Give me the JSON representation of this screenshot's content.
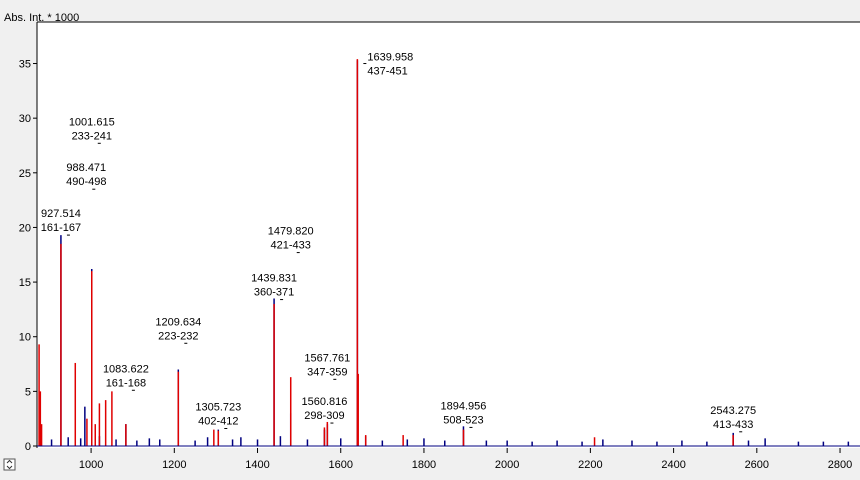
{
  "chart_data": {
    "type": "stem",
    "y_label": "Abs. Int. * 1000",
    "xlim": [
      870,
      2848
    ],
    "ylim": [
      0,
      38.8
    ],
    "xticks": [
      1000,
      1200,
      1400,
      1600,
      1800,
      2000,
      2200,
      2400,
      2600,
      2800
    ],
    "yticks": [
      0,
      5,
      10,
      15,
      20,
      25,
      30,
      35
    ],
    "series": [
      {
        "color": "#000080",
        "x": [
          880,
          905,
          927.5,
          945,
          975,
          985,
          1001.6,
          1020,
          1060,
          1083.6,
          1110,
          1140,
          1165,
          1209.6,
          1250,
          1280,
          1305.7,
          1340,
          1360,
          1400,
          1439.8,
          1455,
          1479.8,
          1520,
          1560.8,
          1567.8,
          1600,
          1639.96,
          1660,
          1700,
          1760,
          1800,
          1850,
          1894.96,
          1950,
          2000,
          2060,
          2120,
          2180,
          2230,
          2300,
          2360,
          2420,
          2480,
          2543.3,
          2580,
          2620,
          2700,
          2760,
          2820
        ],
        "values": [
          1.0,
          0.6,
          19.3,
          0.8,
          0.7,
          3.6,
          16.2,
          0.9,
          0.6,
          2.0,
          0.5,
          0.7,
          0.6,
          7.0,
          0.5,
          0.8,
          1.5,
          0.6,
          0.8,
          0.6,
          13.5,
          0.9,
          3.0,
          0.6,
          1.5,
          2.0,
          0.7,
          35.3,
          0.9,
          0.5,
          0.6,
          0.7,
          0.5,
          1.8,
          0.5,
          0.5,
          0.4,
          0.5,
          0.4,
          0.6,
          0.5,
          0.4,
          0.5,
          0.4,
          1.2,
          0.5,
          0.7,
          0.4,
          0.4,
          0.4
        ]
      },
      {
        "color": "#e00000",
        "x": [
          875,
          878,
          881,
          927.5,
          962,
          990,
          1001.6,
          1010,
          1020,
          1035,
          1050,
          1083.6,
          1209.6,
          1295,
          1305.7,
          1439.8,
          1479.8,
          1560.8,
          1567.8,
          1639.96,
          1642,
          1660,
          1750,
          1895,
          2210,
          2543
        ],
        "values": [
          9.3,
          5.0,
          2.0,
          18.5,
          7.6,
          2.5,
          16.0,
          2.0,
          3.9,
          4.2,
          5.0,
          2.0,
          6.8,
          1.5,
          1.4,
          13.0,
          6.3,
          1.7,
          2.2,
          35.4,
          6.6,
          1.0,
          1.0,
          1.5,
          0.8,
          1.0
        ]
      }
    ],
    "annotations": [
      {
        "text": "927.514",
        "range": "161-167",
        "x": 927.514,
        "y": 19.3
      },
      {
        "text": "988.471",
        "range": "490-498",
        "x": 988.471,
        "y": 23.5
      },
      {
        "text": "1001.615",
        "range": "233-241",
        "x": 1001.615,
        "y": 27.7
      },
      {
        "text": "1083.622",
        "range": "161-168",
        "x": 1083.622,
        "y": 5.1
      },
      {
        "text": "1209.634",
        "range": "223-232",
        "x": 1209.634,
        "y": 9.4
      },
      {
        "text": "1305.723",
        "range": "402-412",
        "x": 1305.723,
        "y": 1.6
      },
      {
        "text": "1439.831",
        "range": "360-371",
        "x": 1439.831,
        "y": 13.4
      },
      {
        "text": "1479.820",
        "range": "421-433",
        "x": 1479.82,
        "y": 17.7
      },
      {
        "text": "1560.816",
        "range": "298-309",
        "x": 1560.816,
        "y": 2.1
      },
      {
        "text": "1567.761",
        "range": "347-359",
        "x": 1567.761,
        "y": 6.1
      },
      {
        "text": "1639.958",
        "range": "437-451",
        "x": 1639.958,
        "y": 35
      },
      {
        "text": "1894.956",
        "range": "508-523",
        "x": 1894.956,
        "y": 1.7
      },
      {
        "text": "2543.275",
        "range": "413-433",
        "x": 2543.275,
        "y": 1.3
      }
    ]
  }
}
